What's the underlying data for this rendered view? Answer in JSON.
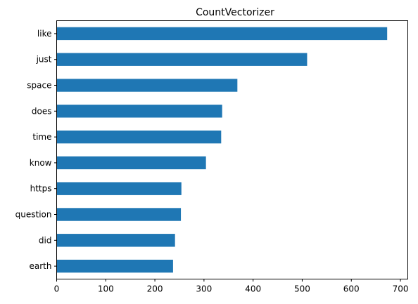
{
  "chart_data": {
    "type": "bar",
    "orientation": "horizontal",
    "title": "CountVectorizer",
    "xlabel": "",
    "ylabel": "",
    "categories": [
      "like",
      "just",
      "space",
      "does",
      "time",
      "know",
      "https",
      "question",
      "did",
      "earth"
    ],
    "values": [
      673,
      510,
      368,
      337,
      335,
      304,
      254,
      253,
      241,
      237
    ],
    "xlim": [
      0,
      715
    ],
    "xticks": [
      0,
      100,
      200,
      300,
      400,
      500,
      600,
      700
    ],
    "grid": false,
    "legend": "none",
    "bar_color": "#1f77b4"
  }
}
